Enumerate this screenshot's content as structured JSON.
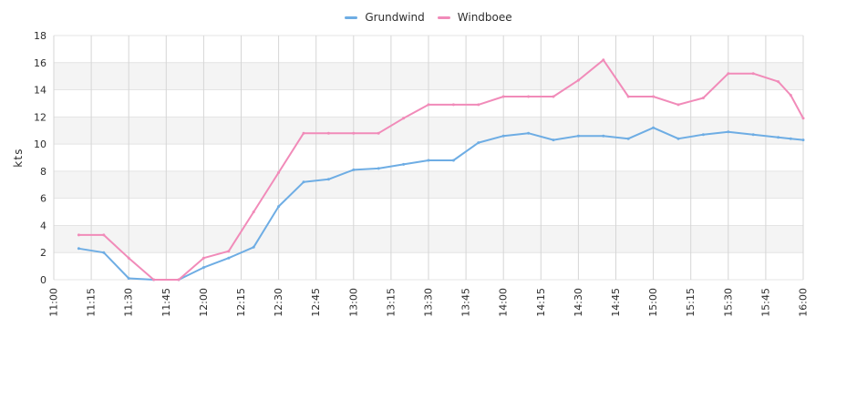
{
  "chart_data": {
    "type": "line",
    "title": "",
    "xlabel": "",
    "ylabel": "kts",
    "ylim": [
      0,
      18
    ],
    "y_ticks": [
      0,
      2,
      4,
      6,
      8,
      10,
      12,
      14,
      16,
      18
    ],
    "x_ticks": [
      "11:00",
      "11:15",
      "11:30",
      "11:45",
      "12:00",
      "12:15",
      "12:30",
      "12:45",
      "13:00",
      "13:15",
      "13:30",
      "13:45",
      "14:00",
      "14:15",
      "14:30",
      "14:45",
      "15:00",
      "15:15",
      "15:30",
      "15:45",
      "16:00"
    ],
    "grid": true,
    "legend_position": "top-center",
    "band_fill": "#f4f4f4",
    "series": [
      {
        "name": "Grundwind",
        "color": "#6eade4",
        "points": [
          [
            "11:10",
            2.3
          ],
          [
            "11:20",
            2.0
          ],
          [
            "11:30",
            0.1
          ],
          [
            "11:40",
            0.0
          ],
          [
            "11:50",
            0.0
          ],
          [
            "12:00",
            0.9
          ],
          [
            "12:10",
            1.6
          ],
          [
            "12:20",
            2.4
          ],
          [
            "12:30",
            5.4
          ],
          [
            "12:40",
            7.2
          ],
          [
            "12:50",
            7.4
          ],
          [
            "13:00",
            8.1
          ],
          [
            "13:10",
            8.2
          ],
          [
            "13:20",
            8.5
          ],
          [
            "13:30",
            8.8
          ],
          [
            "13:40",
            8.8
          ],
          [
            "13:50",
            10.1
          ],
          [
            "14:00",
            10.6
          ],
          [
            "14:10",
            10.8
          ],
          [
            "14:20",
            10.3
          ],
          [
            "14:30",
            10.6
          ],
          [
            "14:40",
            10.6
          ],
          [
            "14:50",
            10.4
          ],
          [
            "15:00",
            11.2
          ],
          [
            "15:10",
            10.4
          ],
          [
            "15:20",
            10.7
          ],
          [
            "15:30",
            10.9
          ],
          [
            "15:40",
            10.7
          ],
          [
            "15:50",
            10.5
          ],
          [
            "15:55",
            10.4
          ],
          [
            "16:00",
            10.3
          ]
        ]
      },
      {
        "name": "Windboee",
        "color": "#f18bb9",
        "points": [
          [
            "11:10",
            3.3
          ],
          [
            "11:20",
            3.3
          ],
          [
            "11:30",
            1.6
          ],
          [
            "11:40",
            0.0
          ],
          [
            "11:50",
            0.0
          ],
          [
            "12:00",
            1.6
          ],
          [
            "12:10",
            2.1
          ],
          [
            "12:20",
            5.0
          ],
          [
            "12:30",
            7.9
          ],
          [
            "12:40",
            10.8
          ],
          [
            "12:50",
            10.8
          ],
          [
            "13:00",
            10.8
          ],
          [
            "13:10",
            10.8
          ],
          [
            "13:20",
            11.9
          ],
          [
            "13:30",
            12.9
          ],
          [
            "13:40",
            12.9
          ],
          [
            "13:50",
            12.9
          ],
          [
            "14:00",
            13.5
          ],
          [
            "14:10",
            13.5
          ],
          [
            "14:20",
            13.5
          ],
          [
            "14:30",
            14.7
          ],
          [
            "14:40",
            16.2
          ],
          [
            "14:50",
            13.5
          ],
          [
            "15:00",
            13.5
          ],
          [
            "15:10",
            12.9
          ],
          [
            "15:20",
            13.4
          ],
          [
            "15:30",
            15.2
          ],
          [
            "15:40",
            15.2
          ],
          [
            "15:50",
            14.6
          ],
          [
            "15:55",
            13.6
          ],
          [
            "16:00",
            11.9
          ]
        ]
      }
    ]
  }
}
